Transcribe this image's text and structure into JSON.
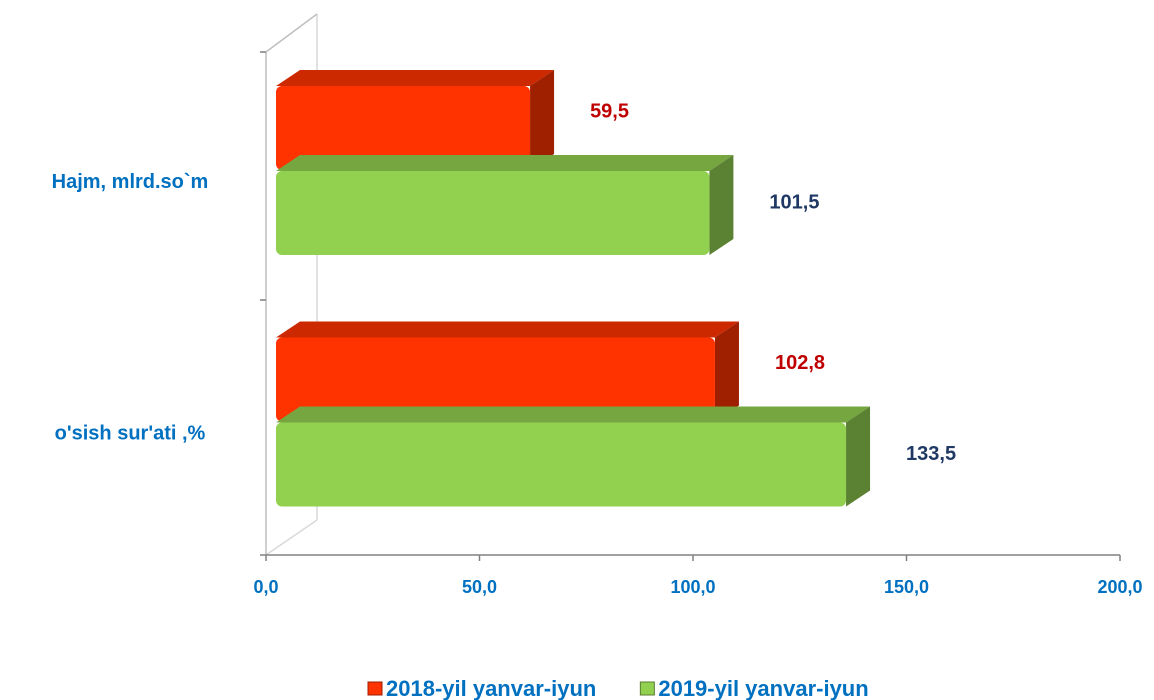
{
  "chart_data": {
    "type": "bar3d_horizontal",
    "categories": [
      "Hajm, mlrd.so`m",
      "o'sish  sur'ati ,%"
    ],
    "series": [
      {
        "name": "2018-yil yanvar-iyun",
        "color": "#ff3300",
        "values": [
          59.5,
          102.8
        ],
        "value_labels": [
          "59,5",
          "102,8"
        ],
        "label_color": "#c00000"
      },
      {
        "name": "2019-yil yanvar-iyun",
        "color": "#92d050",
        "values": [
          101.5,
          133.5
        ],
        "value_labels": [
          "101,5",
          "133,5"
        ],
        "label_color": "#1f3864"
      }
    ],
    "xlim": [
      0,
      200
    ],
    "xticks": [
      {
        "value": 0,
        "label": "0,0"
      },
      {
        "value": 50,
        "label": "50,0"
      },
      {
        "value": 100,
        "label": "100,0"
      },
      {
        "value": 150,
        "label": "150,0"
      },
      {
        "value": 200,
        "label": "200,0"
      }
    ],
    "legend": "bottom"
  }
}
